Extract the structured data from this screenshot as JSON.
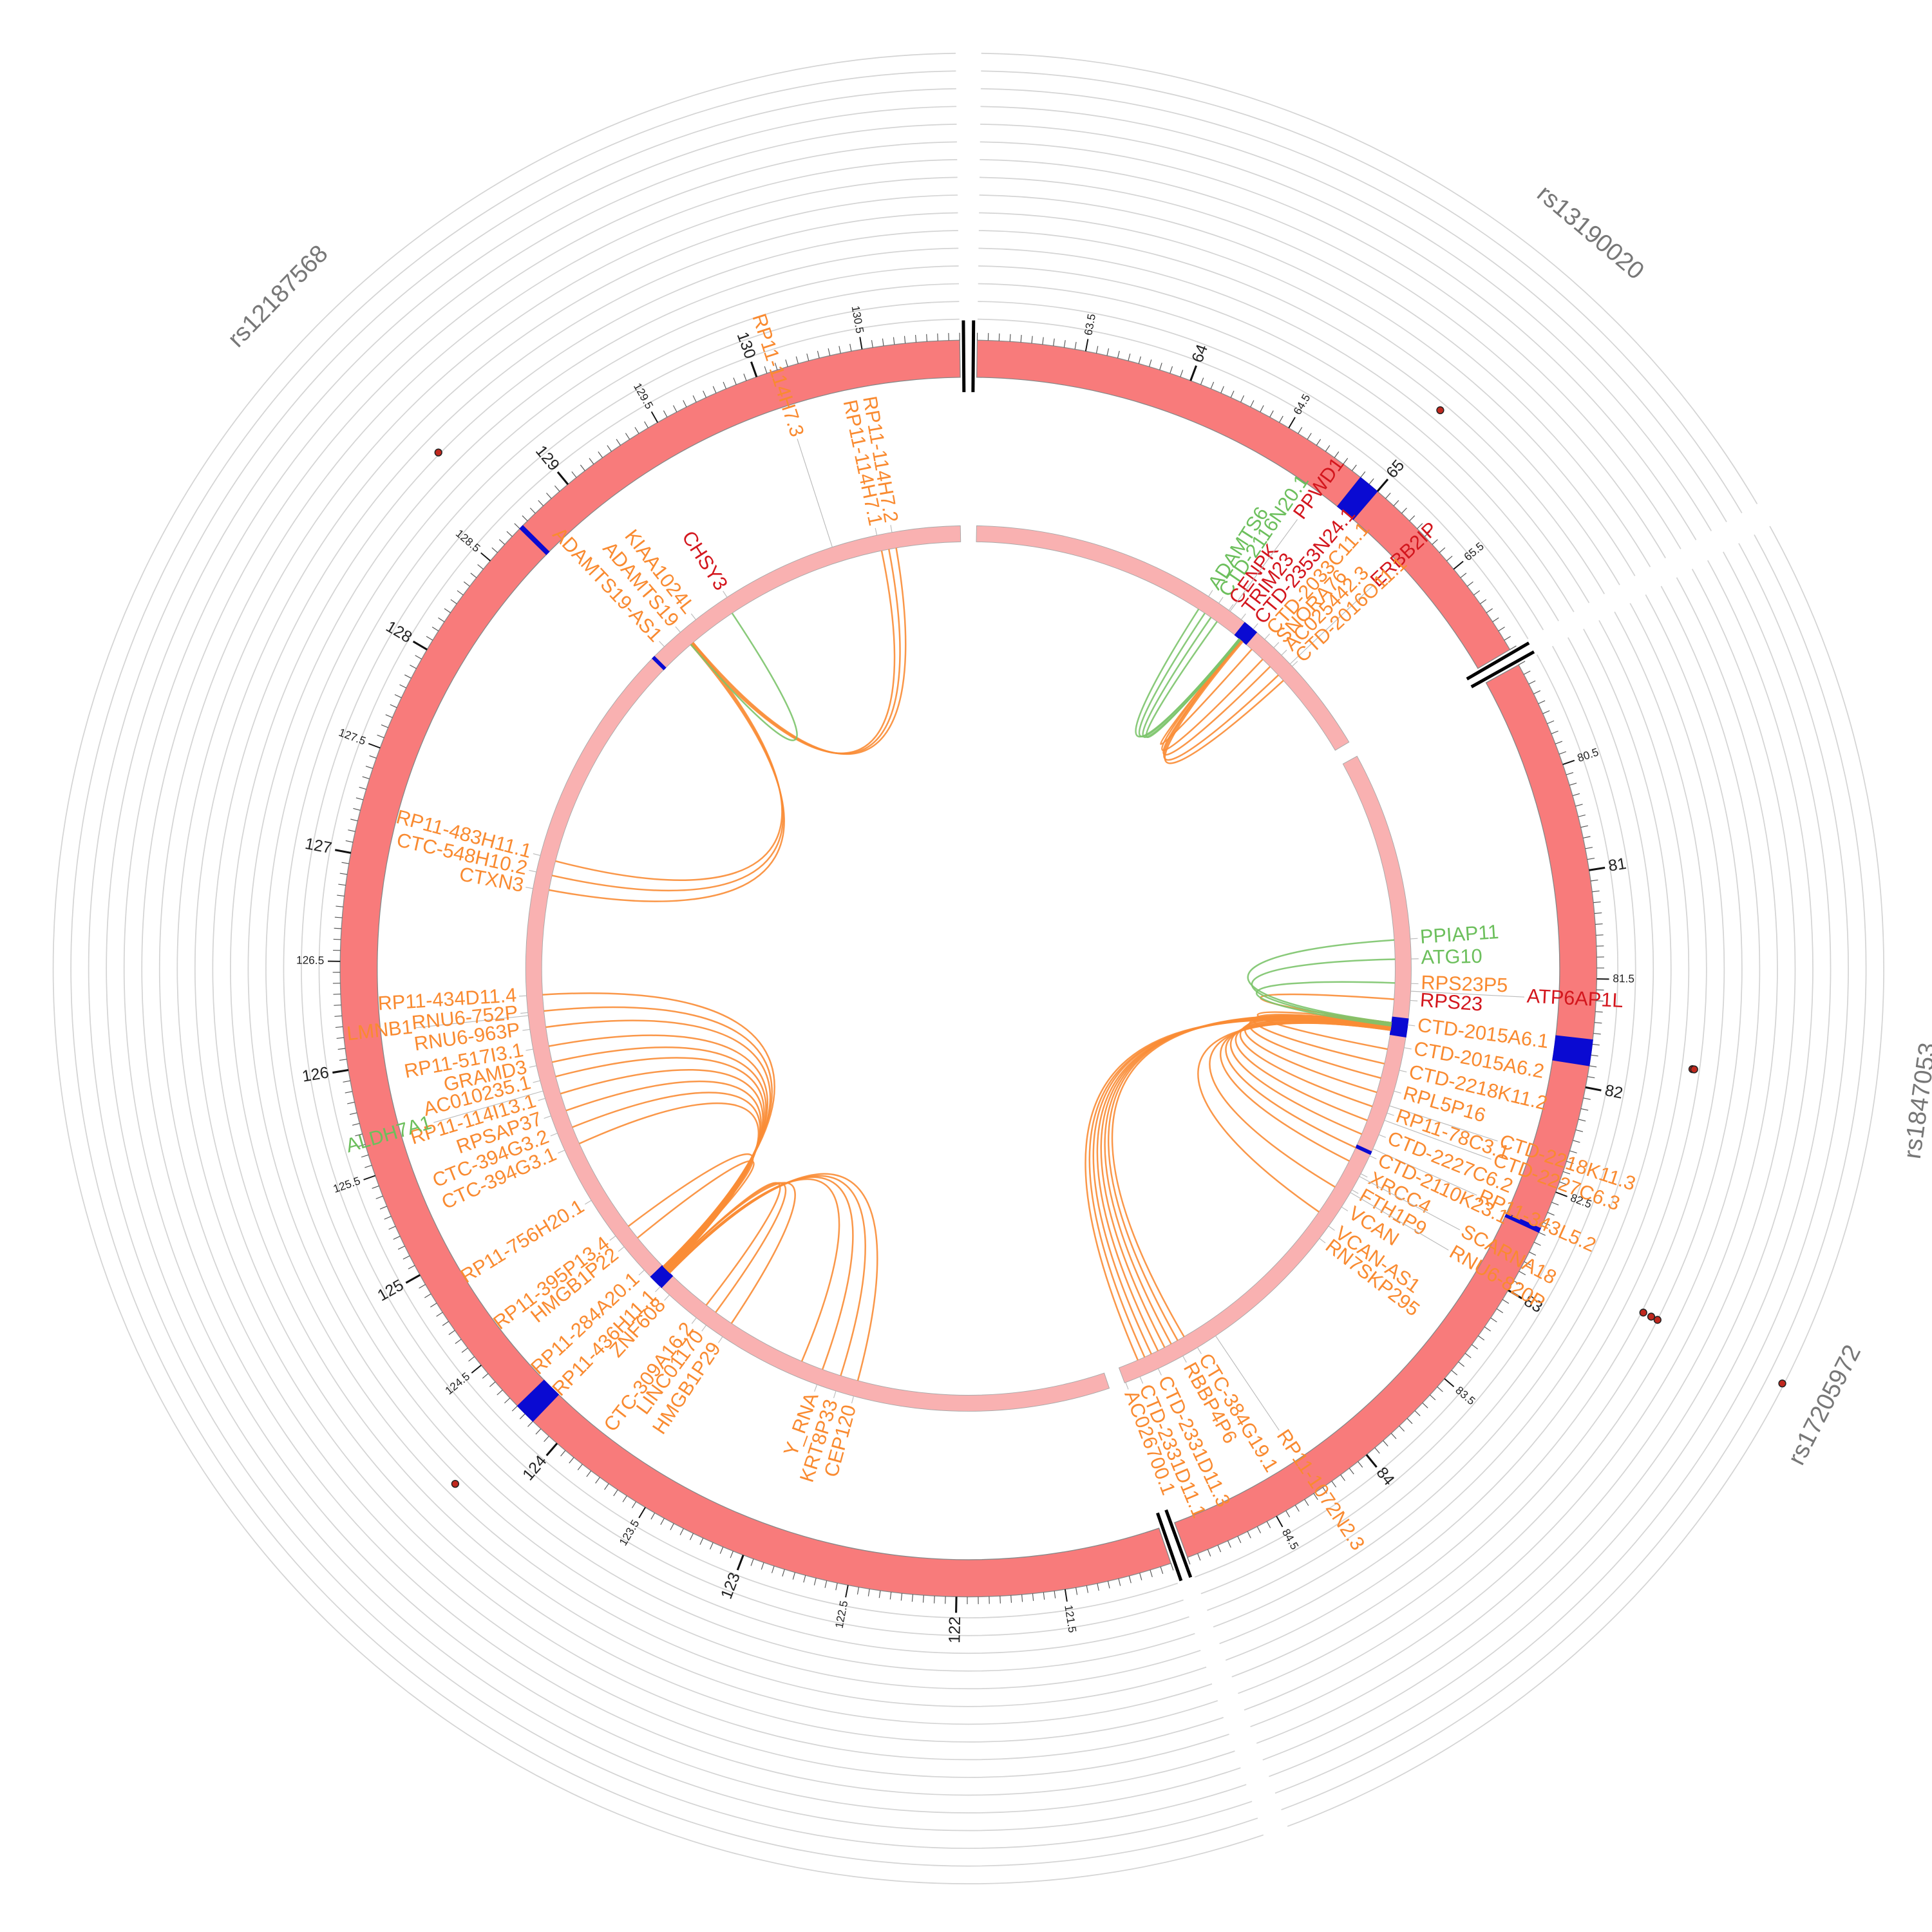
{
  "chart_data": {
    "type": "circos",
    "segments": [
      {
        "lim": [
          63,
          65.95
        ],
        "ticks": [
          63.5,
          64,
          64.5,
          65,
          65.5
        ]
      },
      {
        "lim": [
          80,
          84.95
        ],
        "ticks": [
          80.5,
          81,
          81.5,
          82,
          82.5,
          83,
          83.5,
          84,
          84.5
        ]
      },
      {
        "lim": [
          121,
          130.95
        ],
        "ticks": [
          121.5,
          122,
          122.5,
          123,
          123.5,
          124,
          124.5,
          125,
          125.5,
          126,
          126.5,
          127,
          127.5,
          128,
          128.5,
          129,
          129.5,
          130,
          130.5
        ]
      }
    ],
    "ideogram_color": "#f87b7b",
    "track_color": "#f9b1b1",
    "highlight_color": "#0a0ad2",
    "highlights": [
      [
        64.9,
        65.0
      ],
      [
        81.78,
        81.9
      ],
      [
        82.68,
        82.7
      ],
      [
        124.15,
        124.25
      ],
      [
        128.7,
        128.72
      ]
    ],
    "rlim": [
      0,
      15
    ],
    "rticks": [
      0,
      1,
      2,
      3,
      4,
      5,
      6,
      7,
      8,
      9,
      10,
      11,
      12,
      13,
      14,
      15
    ],
    "snp_color": "#c0281e",
    "snps": [
      {
        "name": "rs13190020",
        "pos": 64.98,
        "values": [
          4.6
        ]
      },
      {
        "name": "rs1847053",
        "pos": 81.85,
        "values": [
          4.6,
          4.7
        ]
      },
      {
        "name": "rs17205972",
        "pos": 82.81,
        "values": [
          6.1,
          6.6,
          7.0,
          14.9
        ]
      },
      {
        "name": null,
        "pos": 124.2,
        "values": [
          4.4
        ]
      },
      {
        "name": "rs12187568",
        "pos": 128.69,
        "values": [
          5.1
        ]
      }
    ],
    "genes": [
      {
        "name": "ADAMTS6",
        "pos": 64.61,
        "color": "#6cbf5c"
      },
      {
        "name": "CTD-2116N20.1",
        "pos": 64.69,
        "color": "#6cbf5c"
      },
      {
        "name": "CENPK",
        "pos": 64.77,
        "color": "#d3161d"
      },
      {
        "name": "PPWD1",
        "pos": 64.78,
        "color": "#d3161d"
      },
      {
        "name": "TRIM23",
        "pos": 64.87,
        "color": "#d3161d"
      },
      {
        "name": "CTD-2353N24.1",
        "pos": 64.97,
        "color": "#d3161d"
      },
      {
        "name": "CTD-2033C11.1",
        "pos": 65.07,
        "color": "#f98a30"
      },
      {
        "name": "SNORA76",
        "pos": 65.15,
        "color": "#f98a30"
      },
      {
        "name": "ERBB2IP",
        "pos": 65.3,
        "color": "#d3161d"
      },
      {
        "name": "AC025442.3",
        "pos": 65.22,
        "color": "#f98a30"
      },
      {
        "name": "CTD-2016O11.1",
        "pos": 65.32,
        "color": "#f98a30"
      },
      {
        "name": "PPIAP11",
        "pos": 81.26,
        "color": "#6cbf5c"
      },
      {
        "name": "ATG10",
        "pos": 81.39,
        "color": "#6cbf5c"
      },
      {
        "name": "RPS23P5",
        "pos": 81.55,
        "color": "#f98a30"
      },
      {
        "name": "ATP6AP1L",
        "pos": 81.6,
        "color": "#d3161d"
      },
      {
        "name": "RPS23",
        "pos": 81.66,
        "color": "#d3161d"
      },
      {
        "name": "CTD-2015A6.1",
        "pos": 81.82,
        "color": "#f98a30"
      },
      {
        "name": "CTD-2015A6.2",
        "pos": 81.97,
        "color": "#f98a30"
      },
      {
        "name": "CTD-2218K11.2",
        "pos": 82.12,
        "color": "#f98a30"
      },
      {
        "name": "RPL5P16",
        "pos": 82.26,
        "color": "#f98a30"
      },
      {
        "name": "CTD-2218K11.3",
        "pos": 82.36,
        "color": "#f98a30"
      },
      {
        "name": "RP11-78C3.1",
        "pos": 82.41,
        "color": "#f98a30"
      },
      {
        "name": "CTD-2227C6.3",
        "pos": 82.46,
        "color": "#f98a30"
      },
      {
        "name": "CTD-2227C6.2",
        "pos": 82.56,
        "color": "#f98a30"
      },
      {
        "name": "RP11-343L5.2",
        "pos": 82.66,
        "color": "#f98a30"
      },
      {
        "name": "CTD-2110K23.1",
        "pos": 82.71,
        "color": "#f98a30"
      },
      {
        "name": "XRCC4",
        "pos": 82.84,
        "color": "#f98a30"
      },
      {
        "name": "SCARNA18",
        "pos": 82.86,
        "color": "#f98a30"
      },
      {
        "name": "FTH1P9",
        "pos": 82.96,
        "color": "#f98a30"
      },
      {
        "name": "VCAN",
        "pos": 83.09,
        "color": "#f98a30"
      },
      {
        "name": "RNU6-820P",
        "pos": 82.98,
        "color": "#f98a30"
      },
      {
        "name": "VCAN-AS1",
        "pos": 83.24,
        "color": "#f98a30"
      },
      {
        "name": "RN7SKP295",
        "pos": 83.34,
        "color": "#f98a30"
      },
      {
        "name": "RP11-1072N2.3",
        "pos": 84.27,
        "color": "#f98a30"
      },
      {
        "name": "CTC-384G19.1",
        "pos": 84.41,
        "color": "#f98a30"
      },
      {
        "name": "RBBP4P6",
        "pos": 84.52,
        "color": "#f98a30"
      },
      {
        "name": "CTD-2331D11.3",
        "pos": 84.7,
        "color": "#f98a30"
      },
      {
        "name": "CTD-2331D11.1",
        "pos": 84.83,
        "color": "#f98a30"
      },
      {
        "name": "AC026700.1",
        "pos": 84.93,
        "color": "#f98a30"
      },
      {
        "name": "CEP120",
        "pos": 122.7,
        "color": "#f98a30"
      },
      {
        "name": "KRT8P33",
        "pos": 122.82,
        "color": "#f98a30"
      },
      {
        "name": "Y_RNA",
        "pos": 122.95,
        "color": "#f98a30"
      },
      {
        "name": "HMGB1P29",
        "pos": 123.64,
        "color": "#f98a30"
      },
      {
        "name": "LINC01170",
        "pos": 123.77,
        "color": "#f98a30"
      },
      {
        "name": "CTC-309A16.2",
        "pos": 123.85,
        "color": "#f98a30"
      },
      {
        "name": "ZNF608",
        "pos": 124.08,
        "color": "#f98a30"
      },
      {
        "name": "RP11-436H11.1",
        "pos": 124.16,
        "color": "#f98a30"
      },
      {
        "name": "RP11-284A20.1",
        "pos": 124.31,
        "color": "#f98a30"
      },
      {
        "name": "HMGB1P22",
        "pos": 124.51,
        "color": "#f98a30"
      },
      {
        "name": "RP11-395P13.4",
        "pos": 124.6,
        "color": "#f98a30"
      },
      {
        "name": "RP11-756H20.1",
        "pos": 124.88,
        "color": "#f98a30"
      },
      {
        "name": "CTC-394G3.1",
        "pos": 125.25,
        "color": "#f98a30"
      },
      {
        "name": "CTC-394G3.2",
        "pos": 125.37,
        "color": "#f98a30"
      },
      {
        "name": "RPSAP37",
        "pos": 125.49,
        "color": "#f98a30"
      },
      {
        "name": "RP11-114I13.1",
        "pos": 125.61,
        "color": "#f98a30"
      },
      {
        "name": "ALDH7A1",
        "pos": 125.66,
        "color": "#6cbf5c"
      },
      {
        "name": "AC010235.1",
        "pos": 125.73,
        "color": "#f98a30"
      },
      {
        "name": "GRAMD3",
        "pos": 125.83,
        "color": "#f98a30"
      },
      {
        "name": "RP11-517I3.1",
        "pos": 125.94,
        "color": "#f98a30"
      },
      {
        "name": "RNU6-963P",
        "pos": 126.07,
        "color": "#f98a30"
      },
      {
        "name": "LMNB1",
        "pos": 126.16,
        "color": "#f98a30"
      },
      {
        "name": "RNU6-752P",
        "pos": 126.18,
        "color": "#f98a30"
      },
      {
        "name": "RP11-434D11.4",
        "pos": 126.29,
        "color": "#f98a30"
      },
      {
        "name": "CTXN3",
        "pos": 126.99,
        "color": "#f98a30"
      },
      {
        "name": "CTC-548H10.2",
        "pos": 127.1,
        "color": "#f98a30"
      },
      {
        "name": "RP11-483H11.1",
        "pos": 127.21,
        "color": "#f98a30"
      },
      {
        "name": "ADAMTS19-AS1",
        "pos": 128.81,
        "color": "#f98a30"
      },
      {
        "name": "ADAMTS19",
        "pos": 128.95,
        "color": "#f98a30"
      },
      {
        "name": "KIAA1024L",
        "pos": 129.08,
        "color": "#f98a30"
      },
      {
        "name": "CHSY3",
        "pos": 129.33,
        "color": "#d3161d"
      },
      {
        "name": "RP11-114H7.3",
        "pos": 130.09,
        "color": "#f98a30"
      },
      {
        "name": "RP11-114H7.1",
        "pos": 130.39,
        "color": "#f98a30"
      },
      {
        "name": "RP11-114H7.2",
        "pos": 130.49,
        "color": "#f98a30"
      }
    ],
    "link_series": [
      {
        "color": "#fa8c35",
        "pairs": [
          [
            81.82,
            84.45
          ],
          [
            81.82,
            84.5
          ],
          [
            81.83,
            84.55
          ],
          [
            81.84,
            84.6
          ],
          [
            81.85,
            84.65
          ],
          [
            81.85,
            84.7
          ],
          [
            81.86,
            84.75
          ],
          [
            81.86,
            84.8
          ],
          [
            81.82,
            82.0
          ],
          [
            81.83,
            82.1
          ],
          [
            81.83,
            82.2
          ],
          [
            81.84,
            82.3
          ],
          [
            81.84,
            82.4
          ],
          [
            81.85,
            82.5
          ],
          [
            81.85,
            82.6
          ],
          [
            81.86,
            82.7
          ],
          [
            81.86,
            82.8
          ],
          [
            81.87,
            83.0
          ],
          [
            81.87,
            83.2
          ],
          [
            81.66,
            81.82
          ],
          [
            64.95,
            65.05
          ],
          [
            64.95,
            65.15
          ],
          [
            64.96,
            65.22
          ],
          [
            64.96,
            65.3
          ],
          [
            64.97,
            65.35
          ],
          [
            124.2,
            125.25
          ],
          [
            124.2,
            125.37
          ],
          [
            124.21,
            125.49
          ],
          [
            124.21,
            125.61
          ],
          [
            124.22,
            125.73
          ],
          [
            124.22,
            125.83
          ],
          [
            124.23,
            125.94
          ],
          [
            124.23,
            126.07
          ],
          [
            124.24,
            126.18
          ],
          [
            124.24,
            126.29
          ],
          [
            124.18,
            122.7
          ],
          [
            124.18,
            122.82
          ],
          [
            124.19,
            122.95
          ],
          [
            124.19,
            123.1
          ],
          [
            124.2,
            123.64
          ],
          [
            124.2,
            123.77
          ],
          [
            124.2,
            123.85
          ],
          [
            124.22,
            124.5
          ],
          [
            124.23,
            124.6
          ],
          [
            128.95,
            127.0
          ],
          [
            128.96,
            127.1
          ],
          [
            128.97,
            127.2
          ],
          [
            128.95,
            130.4
          ],
          [
            128.96,
            130.45
          ],
          [
            128.97,
            130.5
          ]
        ]
      },
      {
        "color": "#7cc46c",
        "pairs": [
          [
            81.82,
            81.26
          ],
          [
            81.83,
            81.39
          ],
          [
            81.84,
            81.55
          ],
          [
            64.94,
            64.6
          ],
          [
            64.94,
            64.65
          ],
          [
            64.95,
            64.7
          ],
          [
            64.95,
            64.75
          ],
          [
            128.95,
            129.3
          ]
        ]
      }
    ]
  }
}
